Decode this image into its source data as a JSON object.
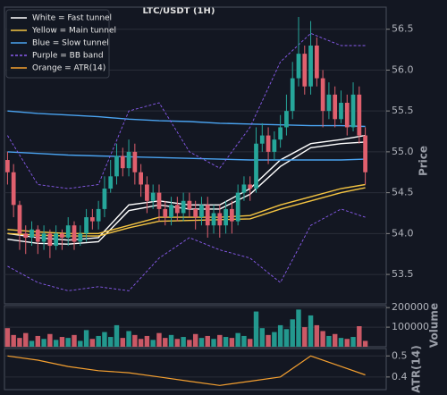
{
  "chart_data": [
    {
      "type": "candlestick",
      "title": "LTC/USDT (1H)",
      "ylabel": "Price",
      "up_color": "#26a69a",
      "down_color": "#e0606e",
      "open": [
        54.9,
        54.75,
        54.35,
        54.0,
        53.95,
        54.05,
        53.9,
        54.0,
        53.85,
        54.0,
        53.95,
        54.1,
        53.9,
        54.0,
        54.2,
        54.15,
        54.3,
        54.55,
        54.7,
        54.95,
        54.8,
        55.0,
        54.75,
        54.6,
        54.4,
        54.5,
        54.3,
        54.2,
        54.35,
        54.25,
        54.4,
        54.3,
        54.2,
        54.35,
        54.1,
        54.25,
        54.1,
        54.3,
        54.15,
        54.5,
        54.6,
        54.55,
        55.1,
        55.2,
        55.0,
        55.15,
        55.3,
        55.5,
        55.9,
        56.2,
        55.8,
        56.3,
        55.9,
        55.5,
        55.7,
        55.4,
        55.6,
        55.3,
        55.7,
        55.2
      ],
      "high": [
        55.0,
        54.85,
        54.4,
        54.1,
        54.15,
        54.1,
        54.1,
        54.05,
        54.1,
        54.05,
        54.2,
        54.15,
        54.1,
        54.3,
        54.3,
        54.4,
        54.7,
        54.9,
        55.1,
        55.05,
        55.15,
        55.1,
        54.85,
        54.7,
        54.6,
        54.6,
        54.4,
        54.45,
        54.45,
        54.5,
        54.5,
        54.4,
        54.45,
        54.45,
        54.35,
        54.35,
        54.4,
        54.4,
        54.6,
        54.7,
        54.7,
        55.3,
        55.35,
        55.3,
        55.25,
        55.45,
        55.7,
        56.1,
        56.65,
        56.3,
        56.6,
        56.4,
        56.0,
        55.85,
        55.8,
        55.75,
        55.7,
        55.85,
        55.8,
        55.3
      ],
      "low": [
        54.6,
        54.2,
        53.8,
        53.75,
        53.85,
        53.75,
        53.8,
        53.7,
        53.8,
        53.8,
        53.85,
        53.8,
        53.85,
        53.9,
        54.05,
        54.05,
        54.2,
        54.5,
        54.6,
        54.7,
        54.7,
        54.6,
        54.45,
        54.25,
        54.3,
        54.15,
        54.1,
        54.1,
        54.15,
        54.15,
        54.2,
        54.05,
        54.1,
        53.95,
        54.0,
        53.95,
        54.0,
        54.0,
        54.1,
        54.4,
        54.4,
        54.5,
        55.0,
        54.85,
        54.9,
        55.05,
        55.2,
        55.4,
        55.8,
        55.7,
        55.7,
        55.8,
        55.3,
        55.4,
        55.3,
        55.35,
        55.2,
        55.25,
        55.1,
        54.6
      ],
      "close": [
        54.75,
        54.35,
        54.0,
        53.95,
        54.05,
        53.9,
        54.0,
        53.85,
        54.0,
        53.95,
        54.1,
        53.9,
        54.0,
        54.2,
        54.15,
        54.3,
        54.55,
        54.7,
        54.95,
        54.8,
        55.0,
        54.75,
        54.6,
        54.4,
        54.5,
        54.3,
        54.2,
        54.35,
        54.25,
        54.4,
        54.3,
        54.2,
        54.35,
        54.1,
        54.25,
        54.1,
        54.3,
        54.15,
        54.5,
        54.6,
        54.55,
        55.1,
        55.2,
        55.0,
        55.15,
        55.3,
        55.5,
        55.9,
        56.2,
        55.8,
        56.3,
        55.9,
        55.5,
        55.7,
        55.4,
        55.6,
        55.3,
        55.7,
        55.2,
        54.75
      ],
      "line_x": [
        0,
        5,
        10,
        15,
        20,
        25,
        30,
        35,
        40,
        45,
        50,
        55,
        59
      ],
      "series": [
        {
          "name": "White = Fast tunnel",
          "color": "#ffffff",
          "style": "solid",
          "lines": [
            [
              54.0,
              53.95,
              53.92,
              53.95,
              54.35,
              54.4,
              54.35,
              54.35,
              54.55,
              54.9,
              55.1,
              55.15,
              55.2
            ],
            [
              53.93,
              53.88,
              53.87,
              53.9,
              54.28,
              54.35,
              54.3,
              54.3,
              54.48,
              54.82,
              55.05,
              55.1,
              55.12
            ]
          ]
        },
        {
          "name": "Yellow = Main tunnel",
          "color": "#f5c542",
          "style": "solid",
          "lines": [
            [
              54.05,
              54.02,
              54.0,
              54.0,
              54.1,
              54.2,
              54.2,
              54.2,
              54.22,
              54.35,
              54.45,
              54.55,
              54.6
            ],
            [
              54.0,
              53.98,
              53.97,
              53.97,
              54.07,
              54.15,
              54.16,
              54.17,
              54.18,
              54.3,
              54.4,
              54.5,
              54.56
            ]
          ]
        },
        {
          "name": "Blue = Slow tunnel",
          "color": "#4aa3f0",
          "style": "solid",
          "lines": [
            [
              55.5,
              55.47,
              55.45,
              55.43,
              55.4,
              55.38,
              55.37,
              55.35,
              55.34,
              55.33,
              55.32,
              55.32,
              55.31
            ],
            [
              55.0,
              54.98,
              54.96,
              54.95,
              54.94,
              54.93,
              54.92,
              54.91,
              54.9,
              54.9,
              54.9,
              54.9,
              54.91
            ]
          ]
        },
        {
          "name": "Purple = BB band",
          "color": "#8a5cf0",
          "style": "dashed",
          "lines": [
            [
              55.2,
              54.6,
              54.55,
              54.6,
              55.5,
              55.6,
              55.0,
              54.8,
              55.3,
              56.1,
              56.45,
              56.3,
              56.3
            ],
            [
              53.6,
              53.4,
              53.3,
              53.35,
              53.3,
              53.7,
              53.95,
              53.8,
              53.7,
              53.4,
              54.1,
              54.3,
              54.2
            ]
          ]
        }
      ],
      "ylim": [
        53.14,
        56.77
      ],
      "yticks": [
        {
          "value": 53.5,
          "label": "53.5"
        },
        {
          "value": 54,
          "label": "54.0"
        },
        {
          "value": 54.5,
          "label": "54.5"
        },
        {
          "value": 55,
          "label": "55.0"
        },
        {
          "value": 55.5,
          "label": "55.5"
        },
        {
          "value": 56,
          "label": "56.0"
        },
        {
          "value": 56.5,
          "label": "56.5"
        }
      ],
      "grid": true,
      "legend": "upper left"
    },
    {
      "type": "bar",
      "ylabel": "Volume",
      "values": [
        95000,
        60000,
        45000,
        70000,
        30000,
        55000,
        40000,
        65000,
        35000,
        50000,
        45000,
        60000,
        30000,
        85000,
        40000,
        55000,
        75000,
        50000,
        110000,
        45000,
        80000,
        60000,
        40000,
        55000,
        35000,
        70000,
        45000,
        60000,
        40000,
        50000,
        35000,
        65000,
        45000,
        55000,
        40000,
        60000,
        50000,
        45000,
        70000,
        55000,
        40000,
        180000,
        95000,
        60000,
        75000,
        110000,
        90000,
        140000,
        190000,
        100000,
        160000,
        110000,
        80000,
        55000,
        65000,
        45000,
        40000,
        50000,
        105000,
        30000
      ],
      "ylim": [
        0,
        210000
      ],
      "yticks": [
        100000,
        200000
      ],
      "grid": true
    },
    {
      "type": "line",
      "ylabel": "ATR(14)",
      "x": [
        0,
        5,
        10,
        15,
        20,
        25,
        30,
        35,
        40,
        45,
        50,
        55,
        59
      ],
      "series": [
        {
          "name": "Orange = ATR(14)",
          "color": "#f5a030",
          "values": [
            0.5,
            0.48,
            0.45,
            0.43,
            0.42,
            0.4,
            0.38,
            0.36,
            0.38,
            0.4,
            0.5,
            0.45,
            0.41
          ]
        }
      ],
      "ylim": [
        0.34,
        0.535
      ],
      "yticks": [
        0.4,
        0.5
      ],
      "grid": true
    }
  ]
}
